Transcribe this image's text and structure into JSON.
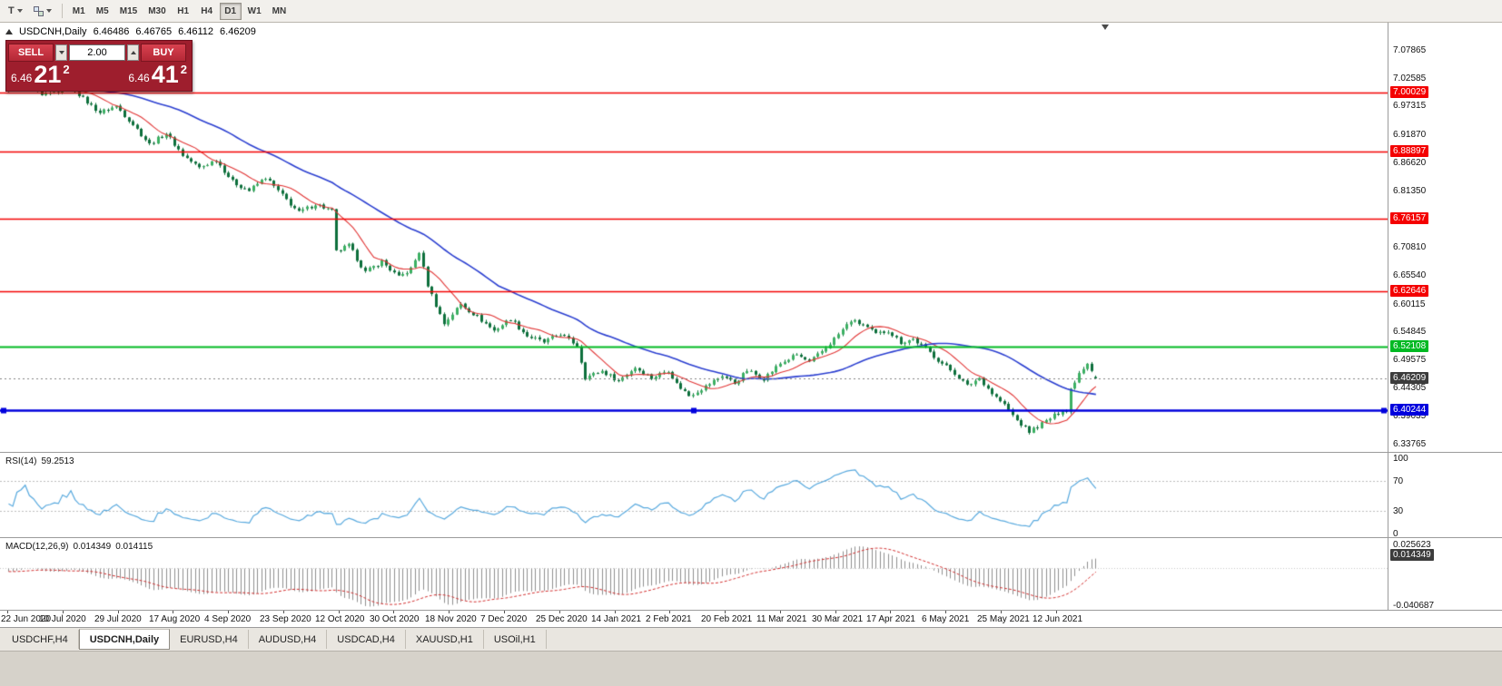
{
  "toolbar": {
    "icons": [
      {
        "name": "chart-type-icon",
        "glyph": "T"
      },
      {
        "name": "objects-icon",
        "glyph": ""
      }
    ],
    "timeframes": [
      "M1",
      "M5",
      "M15",
      "M30",
      "H1",
      "H4",
      "D1",
      "W1",
      "MN"
    ],
    "active_timeframe": "D1"
  },
  "chart": {
    "header": {
      "title": "USDCNH,Daily",
      "open": "6.46486",
      "high": "6.46765",
      "low": "6.46112",
      "close": "6.46209"
    },
    "trade_panel": {
      "sell_label": "SELL",
      "buy_label": "BUY",
      "volume": "2.00",
      "bid_small": "6.46",
      "bid_big": "21",
      "bid_sup": "2",
      "ask_small": "6.46",
      "ask_big": "41",
      "ask_sup": "2",
      "panel_color": "#9e1e2d",
      "button_color": "#c9303e"
    }
  },
  "price_axis": {
    "ticks": [
      "7.07865",
      "7.02585",
      "6.97315",
      "6.91870",
      "6.86620",
      "6.81350",
      "6.70810",
      "6.65540",
      "6.60115",
      "6.54845",
      "6.49575",
      "6.44305",
      "6.39035",
      "6.33765"
    ],
    "level_labels": [
      {
        "label": "7.00029",
        "color": "#f40000"
      },
      {
        "label": "6.88897",
        "color": "#f40000"
      },
      {
        "label": "6.76157",
        "color": "#f40000"
      },
      {
        "label": "6.62646",
        "color": "#f40000"
      },
      {
        "label": "6.52108",
        "color": "#00b922"
      },
      {
        "label": "6.40244",
        "color": "#0000dd"
      }
    ],
    "current": {
      "label": "6.46209",
      "color": "#3c3c3c"
    }
  },
  "indicators": {
    "rsi": {
      "name": "RSI(14)",
      "value": "59.2513",
      "ticks": [
        "100",
        "70",
        "30",
        "0"
      ],
      "dashed_levels": [
        70,
        30
      ],
      "line_color": "#58a9de"
    },
    "macd": {
      "name": "MACD(12,26,9)",
      "value_main": "0.014349",
      "value_signal": "0.014115",
      "axis_top": "0.025623",
      "axis_current": "0.014349",
      "axis_bottom": "-0.040687",
      "histogram_color": "#8f8f8f",
      "signal_color": "#d22f2f"
    }
  },
  "date_axis": {
    "labels": [
      "22 Jun 2020",
      "10 Jul 2020",
      "29 Jul 2020",
      "17 Aug 2020",
      "4 Sep 2020",
      "23 Sep 2020",
      "12 Oct 2020",
      "30 Oct 2020",
      "18 Nov 2020",
      "7 Dec 2020",
      "25 Dec 2020",
      "14 Jan 2021",
      "2 Feb 2021",
      "20 Feb 2021",
      "11 Mar 2021",
      "30 Mar 2021",
      "17 Apr 2021",
      "6 May 2021",
      "25 May 2021",
      "12 Jun 2021"
    ]
  },
  "tabs": {
    "items": [
      "USDCHF,H4",
      "USDCNH,Daily",
      "EURUSD,H4",
      "AUDUSD,H4",
      "USDCAD,H4",
      "XAUUSD,H1",
      "USOil,H1"
    ],
    "active_index": 1
  },
  "chart_data": {
    "type": "candlestick",
    "title": "USDCNH,Daily",
    "bars": 263,
    "y_range": [
      6.295,
      7.095
    ],
    "last_bar_ohlc": {
      "open": 6.46486,
      "high": 6.46765,
      "low": 6.46112,
      "close": 6.46209
    },
    "current_price": 6.46209,
    "price_path_anchors": [
      [
        0,
        7.005
      ],
      [
        4,
        7.02
      ],
      [
        8,
        6.992
      ],
      [
        12,
        7.002
      ],
      [
        15,
        7.013
      ],
      [
        18,
        6.988
      ],
      [
        22,
        6.962
      ],
      [
        26,
        6.974
      ],
      [
        30,
        6.94
      ],
      [
        34,
        6.902
      ],
      [
        38,
        6.923
      ],
      [
        42,
        6.882
      ],
      [
        46,
        6.858
      ],
      [
        50,
        6.873
      ],
      [
        54,
        6.832
      ],
      [
        58,
        6.815
      ],
      [
        62,
        6.84
      ],
      [
        66,
        6.806
      ],
      [
        70,
        6.774
      ],
      [
        74,
        6.79
      ],
      [
        78,
        6.777
      ],
      [
        79,
        6.7
      ],
      [
        82,
        6.712
      ],
      [
        86,
        6.662
      ],
      [
        90,
        6.682
      ],
      [
        94,
        6.652
      ],
      [
        97,
        6.668
      ],
      [
        99,
        6.7
      ],
      [
        101,
        6.638
      ],
      [
        103,
        6.6
      ],
      [
        105,
        6.565
      ],
      [
        109,
        6.602
      ],
      [
        113,
        6.578
      ],
      [
        117,
        6.552
      ],
      [
        121,
        6.574
      ],
      [
        125,
        6.542
      ],
      [
        129,
        6.53
      ],
      [
        133,
        6.546
      ],
      [
        137,
        6.524
      ],
      [
        139,
        6.464
      ],
      [
        143,
        6.476
      ],
      [
        147,
        6.458
      ],
      [
        151,
        6.483
      ],
      [
        155,
        6.463
      ],
      [
        159,
        6.478
      ],
      [
        161,
        6.452
      ],
      [
        164,
        6.43
      ],
      [
        168,
        6.447
      ],
      [
        172,
        6.468
      ],
      [
        175,
        6.453
      ],
      [
        178,
        6.477
      ],
      [
        182,
        6.462
      ],
      [
        186,
        6.49
      ],
      [
        190,
        6.507
      ],
      [
        193,
        6.492
      ],
      [
        197,
        6.52
      ],
      [
        200,
        6.545
      ],
      [
        203,
        6.571
      ],
      [
        206,
        6.563
      ],
      [
        209,
        6.545
      ],
      [
        212,
        6.552
      ],
      [
        215,
        6.53
      ],
      [
        218,
        6.536
      ],
      [
        221,
        6.518
      ],
      [
        225,
        6.49
      ],
      [
        228,
        6.472
      ],
      [
        231,
        6.448
      ],
      [
        234,
        6.463
      ],
      [
        237,
        6.434
      ],
      [
        240,
        6.412
      ],
      [
        243,
        6.383
      ],
      [
        246,
        6.362
      ],
      [
        249,
        6.377
      ],
      [
        252,
        6.392
      ],
      [
        254,
        6.404
      ],
      [
        255,
        6.4
      ],
      [
        256,
        6.442
      ],
      [
        258,
        6.473
      ],
      [
        260,
        6.492
      ],
      [
        261,
        6.479
      ],
      [
        262,
        6.462
      ]
    ],
    "noise": 0.004,
    "warmup_price": 7.03,
    "warmup_bars": 45,
    "bull_color": "#3cb163",
    "bear_color": "#0d6f3c",
    "wick_color": "#14763f",
    "ma_fast_period": 10,
    "ma_fast_color": "#e13535",
    "ma_slow_period": 40,
    "ma_slow_color": "#2b3fd0",
    "horizontal_levels": [
      {
        "price": 7.00029,
        "color": "#f40000",
        "width": 1.5
      },
      {
        "price": 6.88897,
        "color": "#f40000",
        "width": 1.5
      },
      {
        "price": 6.76157,
        "color": "#f40000",
        "width": 1.5
      },
      {
        "price": 6.62646,
        "color": "#f40000",
        "width": 1.5
      },
      {
        "price": 6.52108,
        "color": "#00b922",
        "width": 2
      },
      {
        "price": 6.40244,
        "color": "#0000dd",
        "width": 2.5,
        "selected": true
      }
    ],
    "rsi_period": 14,
    "macd_fast": 12,
    "macd_slow": 26,
    "macd_signal": 9
  }
}
